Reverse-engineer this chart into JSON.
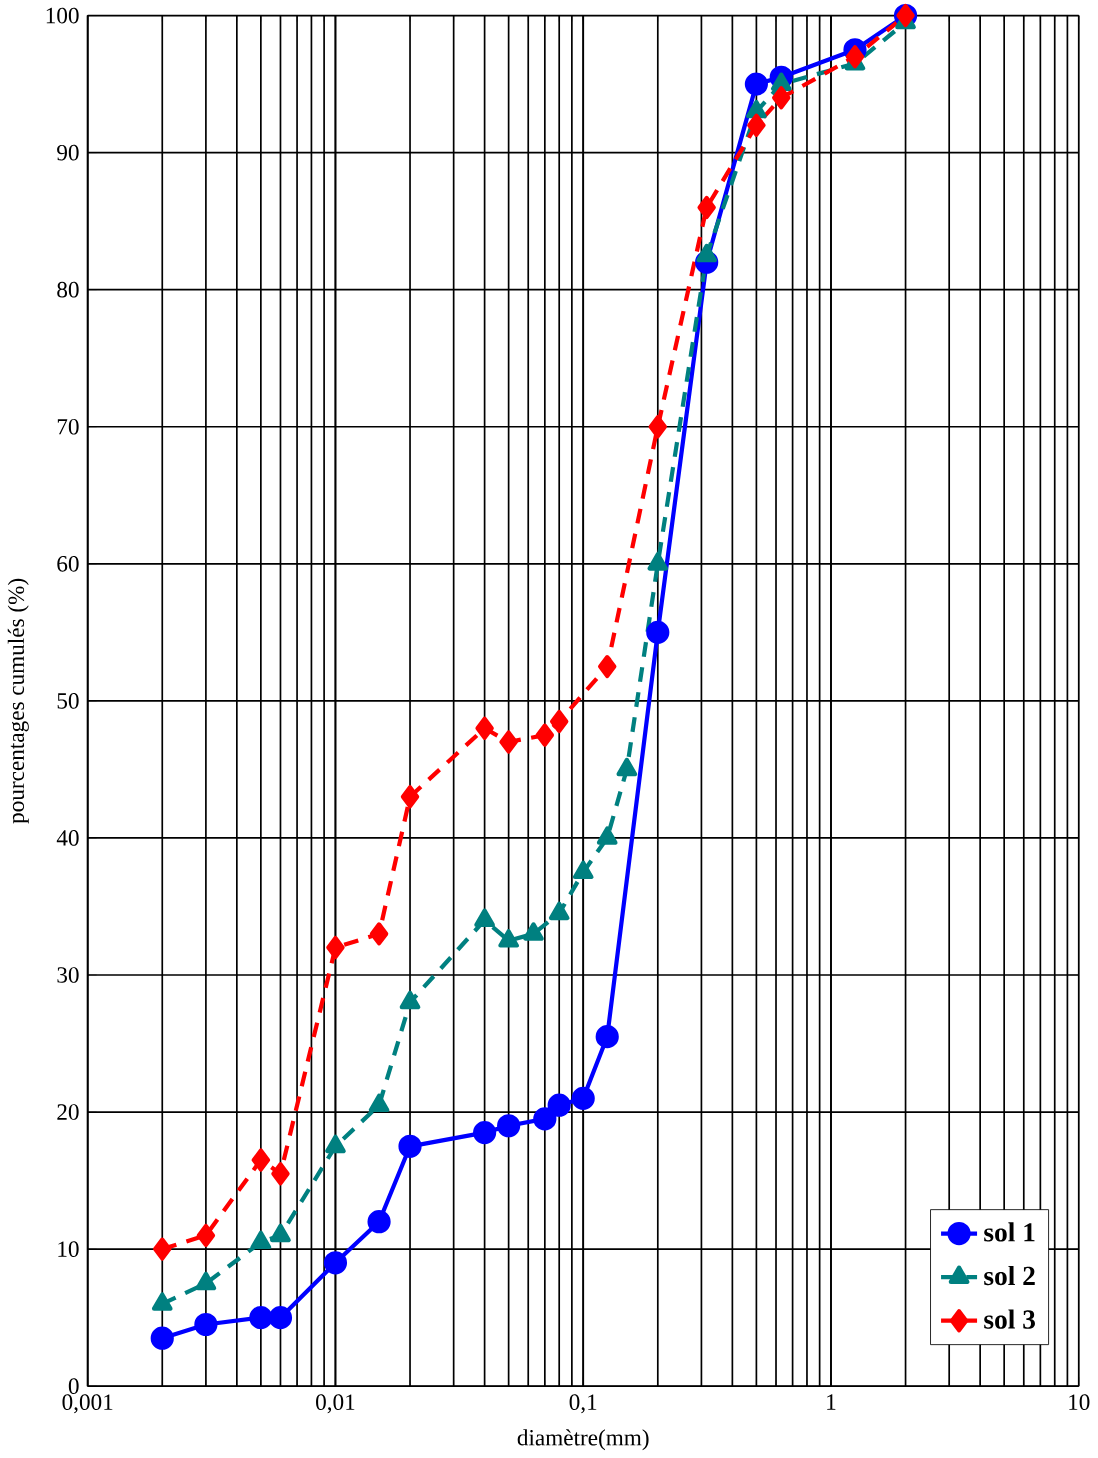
{
  "chart_data": {
    "type": "line",
    "xlabel": "diamètre(mm)",
    "ylabel": "pourcentages cumulés (%)",
    "log": "x",
    "grid": true,
    "legend": "bottom right",
    "xlim": [
      0.001,
      10
    ],
    "xticks": [
      {
        "value": 0.001,
        "label": "0,001"
      },
      {
        "value": 0.01,
        "label": "0,01"
      },
      {
        "value": 0.1,
        "label": "0,1"
      },
      1,
      10
    ],
    "ylim": [
      0,
      100
    ],
    "yticks": [
      0,
      10,
      20,
      30,
      40,
      50,
      60,
      70,
      80,
      90,
      100
    ],
    "series": [
      {
        "name": "sol 1",
        "color": "#0000ff",
        "marker": "circle",
        "line_style": "solid",
        "x": [
          0.002,
          0.003,
          0.005,
          0.006,
          0.01,
          0.015,
          0.02,
          0.04,
          0.05,
          0.07,
          0.08,
          0.1,
          0.125,
          0.2,
          0.315,
          0.5,
          0.63,
          1.25,
          2
        ],
        "values": [
          3.5,
          4.5,
          5,
          5,
          9,
          12,
          17.5,
          18.5,
          19,
          19.5,
          20.5,
          21,
          25.5,
          55,
          82,
          95,
          95.5,
          97.5,
          100
        ]
      },
      {
        "name": "sol 2",
        "color": "#008080",
        "marker": "triangle",
        "line_style": "dashed",
        "x": [
          0.002,
          0.003,
          0.005,
          0.006,
          0.01,
          0.015,
          0.02,
          0.04,
          0.05,
          0.063,
          0.08,
          0.1,
          0.125,
          0.15,
          0.2,
          0.315,
          0.5,
          0.63,
          1.25,
          2
        ],
        "values": [
          6,
          7.5,
          10.5,
          11,
          17.5,
          20.5,
          28,
          34,
          32.5,
          33,
          34.5,
          37.5,
          40,
          45,
          60,
          82.5,
          93,
          95,
          96.5,
          99.5
        ]
      },
      {
        "name": "sol 3",
        "color": "#ff0000",
        "marker": "diamond",
        "line_style": "dashed",
        "x": [
          0.002,
          0.003,
          0.005,
          0.006,
          0.01,
          0.015,
          0.02,
          0.04,
          0.05,
          0.07,
          0.08,
          0.125,
          0.2,
          0.315,
          0.5,
          0.63,
          1.25,
          2
        ],
        "values": [
          10,
          11,
          16.5,
          15.5,
          32,
          33,
          43,
          48,
          47,
          47.5,
          48.5,
          52.5,
          70,
          86,
          92,
          94,
          97,
          100
        ]
      }
    ]
  }
}
